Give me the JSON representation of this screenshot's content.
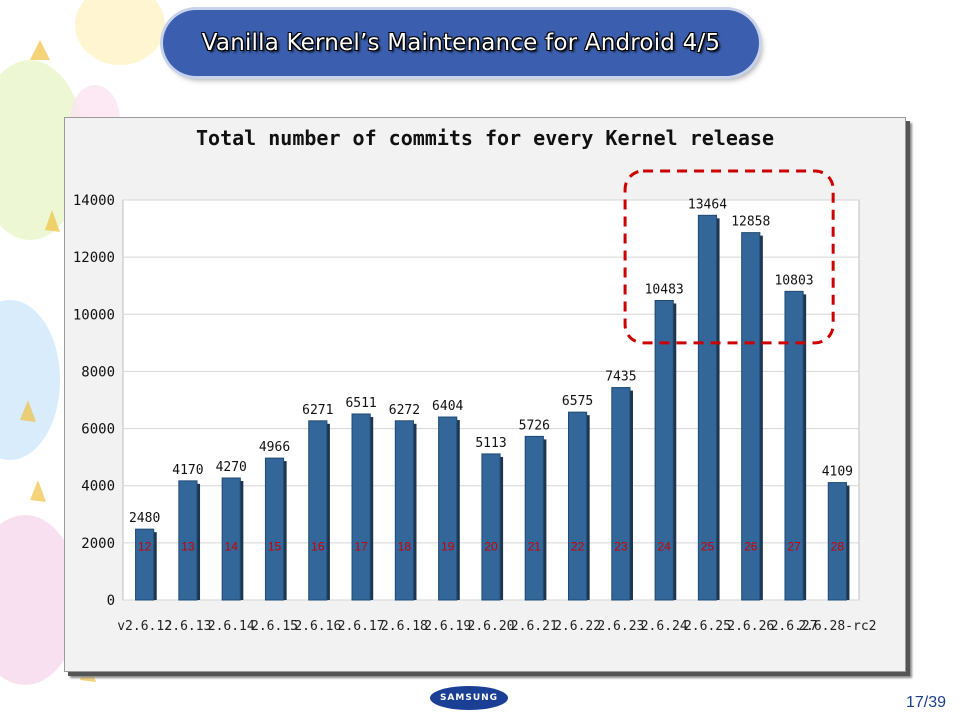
{
  "slide": {
    "title": "Vanilla Kernel’s Maintenance for Android 4/5",
    "page_number": "17/39",
    "logo_text": "SAMSUNG"
  },
  "colors": {
    "bar": "#336699",
    "annotation_red": "#cc0000",
    "title_pill": "#3b5fae"
  },
  "chart_data": {
    "type": "bar",
    "title": "Total number of commits for every Kernel release",
    "categories": [
      "v2.6.12",
      "2.6.13",
      "2.6.14",
      "2.6.15",
      "2.6.16",
      "2.6.17",
      "2.6.18",
      "2.6.19",
      "2.6.20",
      "2.6.21",
      "2.6.22",
      "2.6.23",
      "2.6.24",
      "2.6.25",
      "2.6.26",
      "2.6.27",
      "2.6.28-rc2"
    ],
    "values": [
      2480,
      4170,
      4270,
      4966,
      6271,
      6511,
      6272,
      6404,
      5113,
      5726,
      6575,
      7435,
      10483,
      13464,
      12858,
      10803,
      4109
    ],
    "yticks": [
      0,
      2000,
      4000,
      6000,
      8000,
      10000,
      12000,
      14000
    ],
    "ylim": [
      0,
      14000
    ],
    "version_labels": [
      "12",
      "13",
      "14",
      "15",
      "16",
      "17",
      "18",
      "19",
      "20",
      "21",
      "22",
      "23",
      "24",
      "25",
      "26",
      "27",
      "28"
    ],
    "grid": true
  }
}
